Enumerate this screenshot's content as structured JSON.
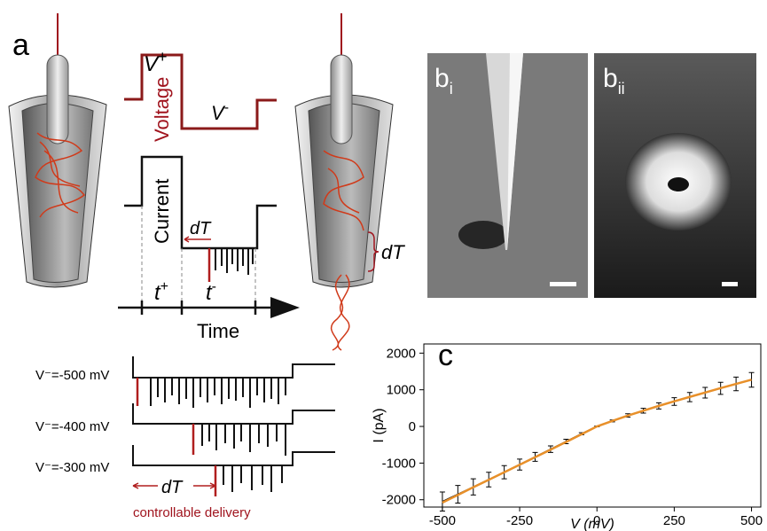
{
  "panel_a": {
    "label": "a",
    "v_plus": "V",
    "v_plus_sup": "+",
    "voltage": "Voltage",
    "v_minus": "V",
    "v_minus_sup": "-",
    "current": "Current",
    "dT": "dT",
    "t_plus": "t",
    "t_plus_sup": "+",
    "t_minus": "t",
    "t_minus_sup": "-",
    "time": "Time",
    "dT_side": "dT"
  },
  "panel_b": [
    {
      "label": "b",
      "sub": "i"
    },
    {
      "label": "b",
      "sub": "ii"
    }
  ],
  "traces": {
    "labels": [
      "V⁻=-500 mV",
      "V⁻=-400 mV",
      "V⁻=-300 mV"
    ],
    "dT": "dT",
    "caption": "controllable delivery"
  },
  "chart_data": {
    "type": "line",
    "label": "c",
    "xlabel": "V (mV)",
    "ylabel": "I (pA)",
    "x": [
      -500,
      -450,
      -400,
      -350,
      -300,
      -250,
      -200,
      -150,
      -100,
      -50,
      0,
      50,
      100,
      150,
      200,
      250,
      300,
      350,
      400,
      450,
      500
    ],
    "series": [
      {
        "color": "#000000",
        "values": [
          -2050,
          -1850,
          -1650,
          -1450,
          -1250,
          -1040,
          -830,
          -620,
          -410,
          -200,
          0,
          150,
          300,
          430,
          560,
          680,
          800,
          920,
          1040,
          1160,
          1270
        ],
        "errors": [
          260,
          240,
          220,
          200,
          180,
          150,
          120,
          90,
          60,
          30,
          10,
          25,
          45,
          65,
          85,
          105,
          125,
          145,
          165,
          185,
          200
        ]
      },
      {
        "color": "#e8902a",
        "values": [
          -2080,
          -1870,
          -1660,
          -1455,
          -1250,
          -1045,
          -840,
          -635,
          -425,
          -215,
          0,
          150,
          295,
          430,
          560,
          685,
          805,
          925,
          1045,
          1160,
          1275
        ]
      }
    ],
    "xlim": [
      -560,
      530
    ],
    "ylim": [
      -2200,
      2250
    ],
    "xticks": [
      -500,
      -250,
      0,
      250,
      500
    ],
    "yticks": [
      -2000,
      -1000,
      0,
      1000,
      2000
    ]
  }
}
